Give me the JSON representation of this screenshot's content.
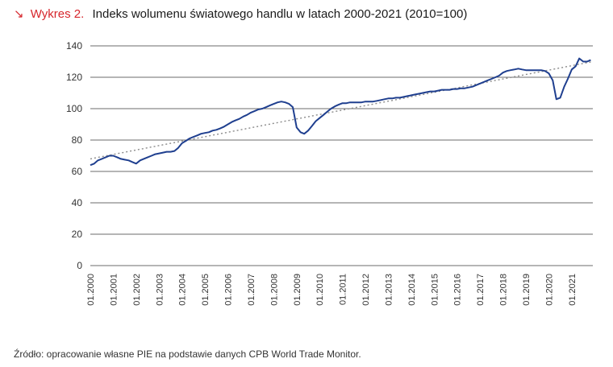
{
  "header": {
    "figure_label": "Wykres 2.",
    "title": "Indeks wolumenu światowego handlu w latach 2000-2021 (2010=100)"
  },
  "source": "Źródło: opracowanie własne PIE na podstawie danych CPB World Trade Monitor.",
  "chart_data": {
    "type": "line",
    "title": "Indeks wolumenu światowego handlu w latach 2000-2021 (2010=100)",
    "xlabel": "",
    "ylabel": "",
    "ylim": [
      0,
      140
    ],
    "yticks": [
      0,
      20,
      40,
      60,
      80,
      100,
      120,
      140
    ],
    "grid": true,
    "x_ticks": [
      "01.2000",
      "01.2001",
      "01.2002",
      "01.2003",
      "01.2004",
      "01.2005",
      "01.2006",
      "01.2007",
      "01.2008",
      "01.2009",
      "01.2010",
      "01.2011",
      "01.2012",
      "01.2013",
      "01.2014",
      "01.2015",
      "01.2016",
      "01.2017",
      "01.2018",
      "01.2019",
      "01.2020",
      "01.2021"
    ],
    "x_start_year": 2000,
    "x_end_year": 2021.92,
    "series_color": "#1f3f8f",
    "trend_color": "#8a8a8a",
    "series": [
      {
        "name": "",
        "points": [
          [
            2000.0,
            64
          ],
          [
            2000.17,
            65
          ],
          [
            2000.33,
            67
          ],
          [
            2000.5,
            68
          ],
          [
            2000.67,
            69
          ],
          [
            2000.83,
            70
          ],
          [
            2001.0,
            70
          ],
          [
            2001.17,
            69
          ],
          [
            2001.33,
            68
          ],
          [
            2001.5,
            67.5
          ],
          [
            2001.67,
            67
          ],
          [
            2001.83,
            66
          ],
          [
            2002.0,
            65
          ],
          [
            2002.17,
            67
          ],
          [
            2002.33,
            68
          ],
          [
            2002.5,
            69
          ],
          [
            2002.67,
            70
          ],
          [
            2002.83,
            71
          ],
          [
            2003.0,
            71.5
          ],
          [
            2003.17,
            72
          ],
          [
            2003.33,
            72.5
          ],
          [
            2003.5,
            72.5
          ],
          [
            2003.67,
            73
          ],
          [
            2003.83,
            75
          ],
          [
            2004.0,
            78
          ],
          [
            2004.17,
            79.5
          ],
          [
            2004.33,
            81
          ],
          [
            2004.5,
            82
          ],
          [
            2004.67,
            83
          ],
          [
            2004.83,
            84
          ],
          [
            2005.0,
            84.5
          ],
          [
            2005.17,
            85
          ],
          [
            2005.33,
            86
          ],
          [
            2005.5,
            86.5
          ],
          [
            2005.67,
            87.5
          ],
          [
            2005.83,
            88.5
          ],
          [
            2006.0,
            90
          ],
          [
            2006.17,
            91.5
          ],
          [
            2006.33,
            92.5
          ],
          [
            2006.5,
            93.5
          ],
          [
            2006.67,
            95
          ],
          [
            2006.83,
            96
          ],
          [
            2007.0,
            97.5
          ],
          [
            2007.17,
            98.5
          ],
          [
            2007.33,
            99.5
          ],
          [
            2007.5,
            100
          ],
          [
            2007.67,
            101
          ],
          [
            2007.83,
            102
          ],
          [
            2008.0,
            103
          ],
          [
            2008.17,
            104
          ],
          [
            2008.33,
            104.5
          ],
          [
            2008.5,
            104
          ],
          [
            2008.67,
            103
          ],
          [
            2008.83,
            101
          ],
          [
            2009.0,
            88
          ],
          [
            2009.17,
            85
          ],
          [
            2009.33,
            84
          ],
          [
            2009.5,
            86
          ],
          [
            2009.67,
            89
          ],
          [
            2009.83,
            92
          ],
          [
            2010.0,
            94
          ],
          [
            2010.17,
            96
          ],
          [
            2010.33,
            98
          ],
          [
            2010.5,
            100
          ],
          [
            2010.67,
            101.5
          ],
          [
            2010.83,
            102.5
          ],
          [
            2011.0,
            103.5
          ],
          [
            2011.17,
            103.5
          ],
          [
            2011.33,
            104
          ],
          [
            2011.5,
            104
          ],
          [
            2011.67,
            104
          ],
          [
            2011.83,
            104
          ],
          [
            2012.0,
            104.5
          ],
          [
            2012.17,
            104.5
          ],
          [
            2012.33,
            104.5
          ],
          [
            2012.5,
            105
          ],
          [
            2012.67,
            105.5
          ],
          [
            2012.83,
            106
          ],
          [
            2013.0,
            106.5
          ],
          [
            2013.17,
            106.5
          ],
          [
            2013.33,
            107
          ],
          [
            2013.5,
            107
          ],
          [
            2013.67,
            107.5
          ],
          [
            2013.83,
            108
          ],
          [
            2014.0,
            108.5
          ],
          [
            2014.17,
            109
          ],
          [
            2014.33,
            109.5
          ],
          [
            2014.5,
            110
          ],
          [
            2014.67,
            110.5
          ],
          [
            2014.83,
            111
          ],
          [
            2015.0,
            111
          ],
          [
            2015.17,
            111.5
          ],
          [
            2015.33,
            112
          ],
          [
            2015.5,
            112
          ],
          [
            2015.67,
            112
          ],
          [
            2015.83,
            112.5
          ],
          [
            2016.0,
            112.5
          ],
          [
            2016.17,
            113
          ],
          [
            2016.33,
            113
          ],
          [
            2016.5,
            113.5
          ],
          [
            2016.67,
            114
          ],
          [
            2016.83,
            115
          ],
          [
            2017.0,
            116
          ],
          [
            2017.17,
            117
          ],
          [
            2017.33,
            118
          ],
          [
            2017.5,
            119
          ],
          [
            2017.67,
            120
          ],
          [
            2017.83,
            121
          ],
          [
            2018.0,
            123
          ],
          [
            2018.17,
            124
          ],
          [
            2018.33,
            124.5
          ],
          [
            2018.5,
            125
          ],
          [
            2018.67,
            125.5
          ],
          [
            2018.83,
            125
          ],
          [
            2019.0,
            124.5
          ],
          [
            2019.17,
            124.5
          ],
          [
            2019.33,
            124.5
          ],
          [
            2019.5,
            124.5
          ],
          [
            2019.67,
            124.5
          ],
          [
            2019.83,
            124
          ],
          [
            2020.0,
            122.5
          ],
          [
            2020.17,
            118
          ],
          [
            2020.33,
            106
          ],
          [
            2020.5,
            107
          ],
          [
            2020.67,
            114
          ],
          [
            2020.83,
            119
          ],
          [
            2021.0,
            125
          ],
          [
            2021.17,
            127
          ],
          [
            2021.33,
            132
          ],
          [
            2021.5,
            130
          ],
          [
            2021.67,
            130
          ],
          [
            2021.83,
            131
          ]
        ]
      }
    ],
    "trend_line": {
      "points": [
        [
          2000.0,
          68
        ],
        [
          2021.92,
          130
        ]
      ]
    }
  }
}
